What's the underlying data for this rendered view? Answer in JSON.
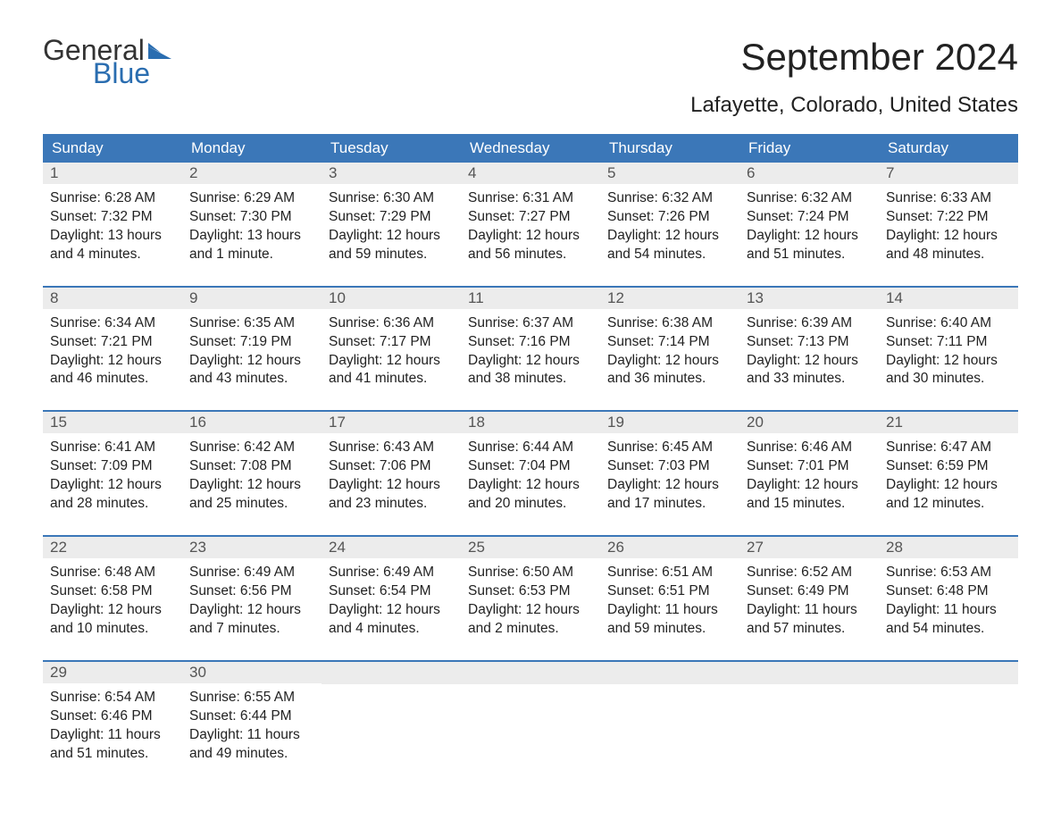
{
  "logo": {
    "word1": "General",
    "word2": "Blue",
    "text_color": "#333333",
    "accent_color": "#2a6db0",
    "flag_color": "#2a6db0"
  },
  "title": "September 2024",
  "subtitle": "Lafayette, Colorado, United States",
  "colors": {
    "header_bg": "#3b77b8",
    "header_text": "#ffffff",
    "daynum_bg": "#ececec",
    "daynum_text": "#555555",
    "week_border": "#3b77b8",
    "body_text": "#222222",
    "page_bg": "#ffffff"
  },
  "typography": {
    "title_fontsize": 42,
    "subtitle_fontsize": 24,
    "header_cell_fontsize": 17,
    "daynum_fontsize": 17,
    "body_fontsize": 15.5,
    "font_family": "Arial"
  },
  "layout": {
    "columns": 7,
    "rows": 5,
    "column_headers": [
      "Sunday",
      "Monday",
      "Tuesday",
      "Wednesday",
      "Thursday",
      "Friday",
      "Saturday"
    ]
  },
  "days": [
    {
      "num": "1",
      "sunrise": "Sunrise: 6:28 AM",
      "sunset": "Sunset: 7:32 PM",
      "dl1": "Daylight: 13 hours",
      "dl2": "and 4 minutes."
    },
    {
      "num": "2",
      "sunrise": "Sunrise: 6:29 AM",
      "sunset": "Sunset: 7:30 PM",
      "dl1": "Daylight: 13 hours",
      "dl2": "and 1 minute."
    },
    {
      "num": "3",
      "sunrise": "Sunrise: 6:30 AM",
      "sunset": "Sunset: 7:29 PM",
      "dl1": "Daylight: 12 hours",
      "dl2": "and 59 minutes."
    },
    {
      "num": "4",
      "sunrise": "Sunrise: 6:31 AM",
      "sunset": "Sunset: 7:27 PM",
      "dl1": "Daylight: 12 hours",
      "dl2": "and 56 minutes."
    },
    {
      "num": "5",
      "sunrise": "Sunrise: 6:32 AM",
      "sunset": "Sunset: 7:26 PM",
      "dl1": "Daylight: 12 hours",
      "dl2": "and 54 minutes."
    },
    {
      "num": "6",
      "sunrise": "Sunrise: 6:32 AM",
      "sunset": "Sunset: 7:24 PM",
      "dl1": "Daylight: 12 hours",
      "dl2": "and 51 minutes."
    },
    {
      "num": "7",
      "sunrise": "Sunrise: 6:33 AM",
      "sunset": "Sunset: 7:22 PM",
      "dl1": "Daylight: 12 hours",
      "dl2": "and 48 minutes."
    },
    {
      "num": "8",
      "sunrise": "Sunrise: 6:34 AM",
      "sunset": "Sunset: 7:21 PM",
      "dl1": "Daylight: 12 hours",
      "dl2": "and 46 minutes."
    },
    {
      "num": "9",
      "sunrise": "Sunrise: 6:35 AM",
      "sunset": "Sunset: 7:19 PM",
      "dl1": "Daylight: 12 hours",
      "dl2": "and 43 minutes."
    },
    {
      "num": "10",
      "sunrise": "Sunrise: 6:36 AM",
      "sunset": "Sunset: 7:17 PM",
      "dl1": "Daylight: 12 hours",
      "dl2": "and 41 minutes."
    },
    {
      "num": "11",
      "sunrise": "Sunrise: 6:37 AM",
      "sunset": "Sunset: 7:16 PM",
      "dl1": "Daylight: 12 hours",
      "dl2": "and 38 minutes."
    },
    {
      "num": "12",
      "sunrise": "Sunrise: 6:38 AM",
      "sunset": "Sunset: 7:14 PM",
      "dl1": "Daylight: 12 hours",
      "dl2": "and 36 minutes."
    },
    {
      "num": "13",
      "sunrise": "Sunrise: 6:39 AM",
      "sunset": "Sunset: 7:13 PM",
      "dl1": "Daylight: 12 hours",
      "dl2": "and 33 minutes."
    },
    {
      "num": "14",
      "sunrise": "Sunrise: 6:40 AM",
      "sunset": "Sunset: 7:11 PM",
      "dl1": "Daylight: 12 hours",
      "dl2": "and 30 minutes."
    },
    {
      "num": "15",
      "sunrise": "Sunrise: 6:41 AM",
      "sunset": "Sunset: 7:09 PM",
      "dl1": "Daylight: 12 hours",
      "dl2": "and 28 minutes."
    },
    {
      "num": "16",
      "sunrise": "Sunrise: 6:42 AM",
      "sunset": "Sunset: 7:08 PM",
      "dl1": "Daylight: 12 hours",
      "dl2": "and 25 minutes."
    },
    {
      "num": "17",
      "sunrise": "Sunrise: 6:43 AM",
      "sunset": "Sunset: 7:06 PM",
      "dl1": "Daylight: 12 hours",
      "dl2": "and 23 minutes."
    },
    {
      "num": "18",
      "sunrise": "Sunrise: 6:44 AM",
      "sunset": "Sunset: 7:04 PM",
      "dl1": "Daylight: 12 hours",
      "dl2": "and 20 minutes."
    },
    {
      "num": "19",
      "sunrise": "Sunrise: 6:45 AM",
      "sunset": "Sunset: 7:03 PM",
      "dl1": "Daylight: 12 hours",
      "dl2": "and 17 minutes."
    },
    {
      "num": "20",
      "sunrise": "Sunrise: 6:46 AM",
      "sunset": "Sunset: 7:01 PM",
      "dl1": "Daylight: 12 hours",
      "dl2": "and 15 minutes."
    },
    {
      "num": "21",
      "sunrise": "Sunrise: 6:47 AM",
      "sunset": "Sunset: 6:59 PM",
      "dl1": "Daylight: 12 hours",
      "dl2": "and 12 minutes."
    },
    {
      "num": "22",
      "sunrise": "Sunrise: 6:48 AM",
      "sunset": "Sunset: 6:58 PM",
      "dl1": "Daylight: 12 hours",
      "dl2": "and 10 minutes."
    },
    {
      "num": "23",
      "sunrise": "Sunrise: 6:49 AM",
      "sunset": "Sunset: 6:56 PM",
      "dl1": "Daylight: 12 hours",
      "dl2": "and 7 minutes."
    },
    {
      "num": "24",
      "sunrise": "Sunrise: 6:49 AM",
      "sunset": "Sunset: 6:54 PM",
      "dl1": "Daylight: 12 hours",
      "dl2": "and 4 minutes."
    },
    {
      "num": "25",
      "sunrise": "Sunrise: 6:50 AM",
      "sunset": "Sunset: 6:53 PM",
      "dl1": "Daylight: 12 hours",
      "dl2": "and 2 minutes."
    },
    {
      "num": "26",
      "sunrise": "Sunrise: 6:51 AM",
      "sunset": "Sunset: 6:51 PM",
      "dl1": "Daylight: 11 hours",
      "dl2": "and 59 minutes."
    },
    {
      "num": "27",
      "sunrise": "Sunrise: 6:52 AM",
      "sunset": "Sunset: 6:49 PM",
      "dl1": "Daylight: 11 hours",
      "dl2": "and 57 minutes."
    },
    {
      "num": "28",
      "sunrise": "Sunrise: 6:53 AM",
      "sunset": "Sunset: 6:48 PM",
      "dl1": "Daylight: 11 hours",
      "dl2": "and 54 minutes."
    },
    {
      "num": "29",
      "sunrise": "Sunrise: 6:54 AM",
      "sunset": "Sunset: 6:46 PM",
      "dl1": "Daylight: 11 hours",
      "dl2": "and 51 minutes."
    },
    {
      "num": "30",
      "sunrise": "Sunrise: 6:55 AM",
      "sunset": "Sunset: 6:44 PM",
      "dl1": "Daylight: 11 hours",
      "dl2": "and 49 minutes."
    }
  ]
}
